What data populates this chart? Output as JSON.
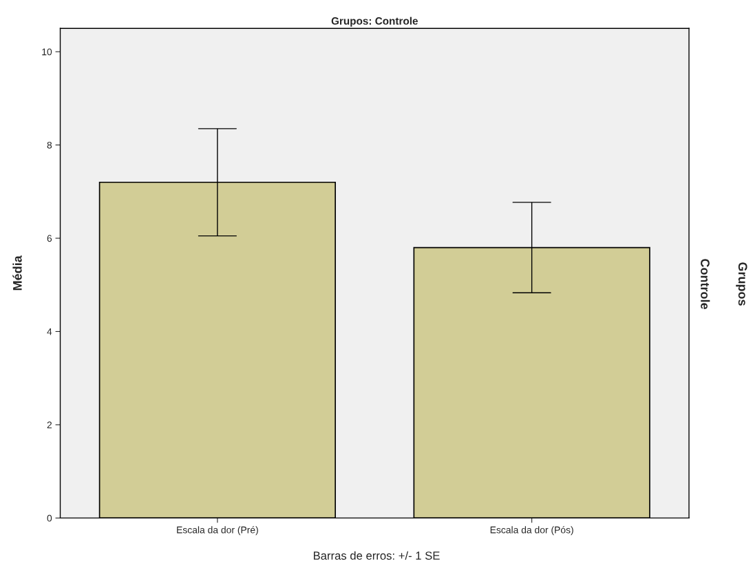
{
  "chart_data": {
    "type": "bar",
    "title": "Grupos: Controle",
    "ylabel": "Média",
    "categories": [
      "Escala da dor (Pré)",
      "Escala da dor (Pós)"
    ],
    "values": [
      7.2,
      5.8
    ],
    "errors": [
      1.15,
      0.97
    ],
    "color": "#d2cd96",
    "ylim": [
      0,
      10.5
    ],
    "yticks": [
      0,
      2,
      4,
      6,
      8,
      10
    ],
    "grid": false,
    "annotations": [
      "Controle",
      "Grupos",
      "Barras de erros: +/- 1 SE"
    ]
  }
}
